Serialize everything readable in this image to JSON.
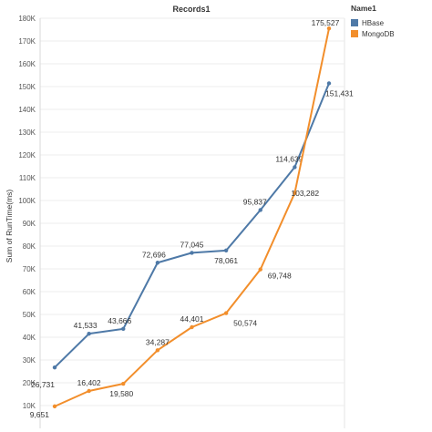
{
  "chart_data": {
    "type": "line",
    "title": "Records1",
    "xlabel": "",
    "ylabel": "Sum of RunTime(ms)",
    "ylim": [
      0,
      180000
    ],
    "yticks": [
      10000,
      20000,
      30000,
      40000,
      50000,
      60000,
      70000,
      80000,
      90000,
      100000,
      110000,
      120000,
      130000,
      140000,
      150000,
      160000,
      170000,
      180000
    ],
    "ytick_labels": [
      "10K",
      "20K",
      "30K",
      "40K",
      "50K",
      "60K",
      "70K",
      "80K",
      "90K",
      "100K",
      "110K",
      "120K",
      "130K",
      "140K",
      "150K",
      "160K",
      "170K",
      "180K"
    ],
    "grid": true,
    "legend": {
      "title": "Name1",
      "placement": "top-right"
    },
    "x": [
      1,
      2,
      3,
      4,
      5,
      6,
      7,
      8,
      9
    ],
    "series": [
      {
        "name": "HBase",
        "color": "#4e79a7",
        "values": [
          26731,
          41533,
          43666,
          72696,
          77045,
          78061,
          95837,
          114639,
          151431
        ],
        "labels": [
          "26,731",
          "41,533",
          "43,666",
          "72,696",
          "77,045",
          "78,061",
          "95,837",
          "114,639",
          "151,431"
        ]
      },
      {
        "name": "MongoDB",
        "color": "#f28e2b",
        "values": [
          9651,
          16402,
          19580,
          34287,
          44401,
          50574,
          69748,
          103282,
          175527
        ],
        "labels": [
          "9,651",
          "16,402",
          "19,580",
          "34,287",
          "44,401",
          "50,574",
          "69,748",
          "103,282",
          "175,527"
        ]
      }
    ]
  }
}
